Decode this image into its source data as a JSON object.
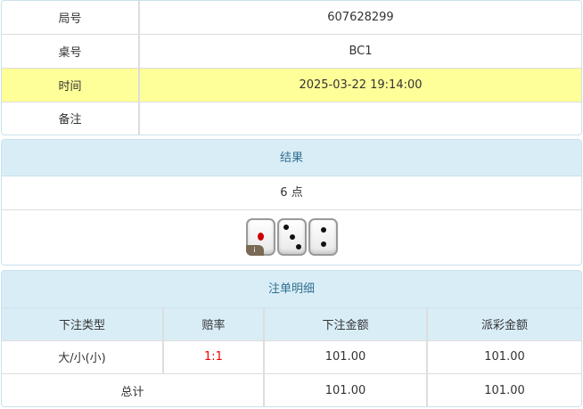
{
  "info": [
    {
      "label": "局号",
      "value": "607628299"
    },
    {
      "label": "桌号",
      "value": "BC1"
    },
    {
      "label": "时间",
      "value": "2025-03-22 19:14:00"
    },
    {
      "label": "备注",
      "value": ""
    }
  ],
  "result": {
    "title": "结果",
    "points": "6 点",
    "dice": [
      1,
      3,
      2
    ],
    "info_badge": "i"
  },
  "bets": {
    "title": "注单明细",
    "headers": [
      "下注类型",
      "赔率",
      "下注金额",
      "派彩金额"
    ],
    "rows": [
      {
        "type": "大/小(小)",
        "odds": "1:1",
        "amount": "101.00",
        "payout": "101.00"
      }
    ],
    "total": {
      "label": "总计",
      "amount": "101.00",
      "payout": "101.00"
    }
  },
  "colors": {
    "highlight": "#ffff99",
    "header_bg": "#d9edf7",
    "odds": "#ee0000"
  }
}
